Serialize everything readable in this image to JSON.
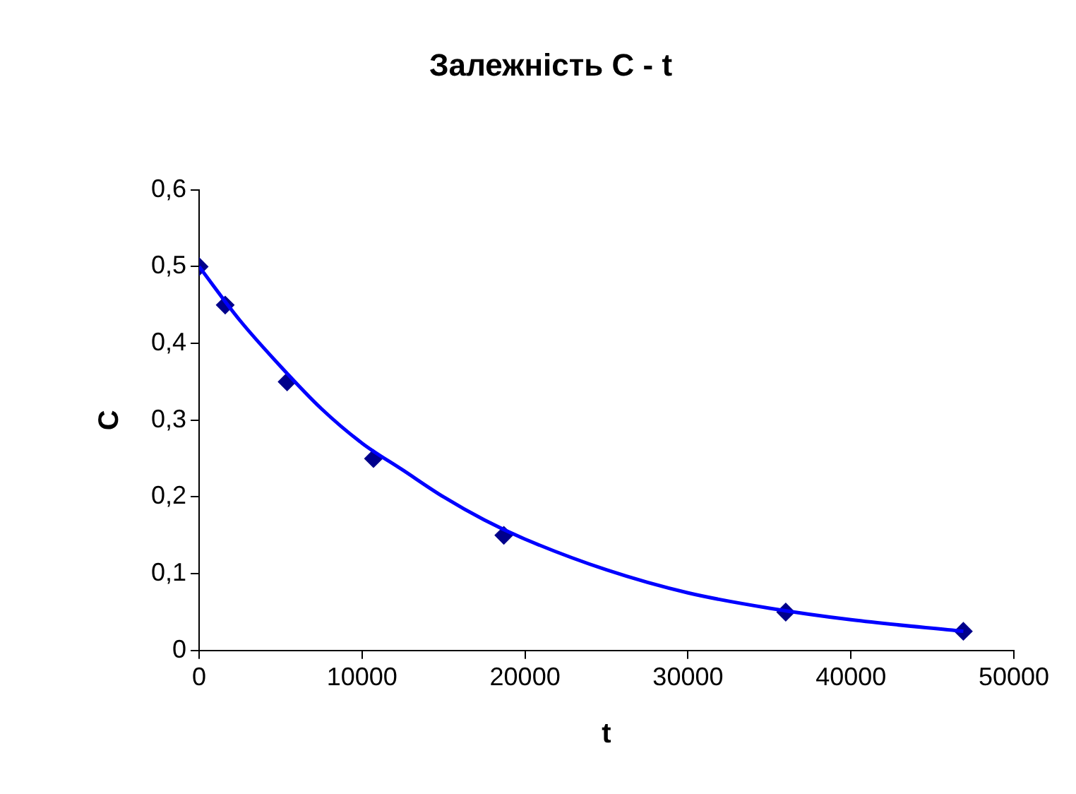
{
  "chart_data": {
    "type": "scatter",
    "title": "Залежність C - t",
    "xlabel": "t",
    "ylabel": "C",
    "marker": "diamond",
    "grid": false,
    "legend": false,
    "xlim": [
      0,
      50000
    ],
    "xticks": [
      0,
      10000,
      20000,
      30000,
      40000,
      50000
    ],
    "ylim": [
      0,
      0.6
    ],
    "yticks": [
      0,
      {
        "value": 0.1,
        "label": "0,1"
      },
      {
        "value": 0.2,
        "label": "0,2"
      },
      {
        "value": 0.3,
        "label": "0,3"
      },
      {
        "value": 0.4,
        "label": "0,4"
      },
      {
        "value": 0.5,
        "label": "0,5"
      },
      {
        "value": 0.6,
        "label": "0,6"
      }
    ],
    "series": [
      {
        "type": "line",
        "color": "#0000ff",
        "marker": "none",
        "x": [
          0,
          2500,
          5000,
          7500,
          10000,
          12500,
          15000,
          17500,
          20000,
          25000,
          30000,
          35000,
          40000,
          46900
        ],
        "values": [
          0.5,
          0.43,
          0.37,
          0.315,
          0.27,
          0.235,
          0.2,
          0.17,
          0.145,
          0.105,
          0.075,
          0.055,
          0.04,
          0.025
        ]
      },
      {
        "type": "scatter",
        "color": "#00008b",
        "x": [
          0,
          1600,
          5400,
          10700,
          18700,
          36000,
          46900
        ],
        "values": [
          0.5,
          0.45,
          0.35,
          0.25,
          0.15,
          0.05,
          0.025
        ]
      }
    ]
  }
}
